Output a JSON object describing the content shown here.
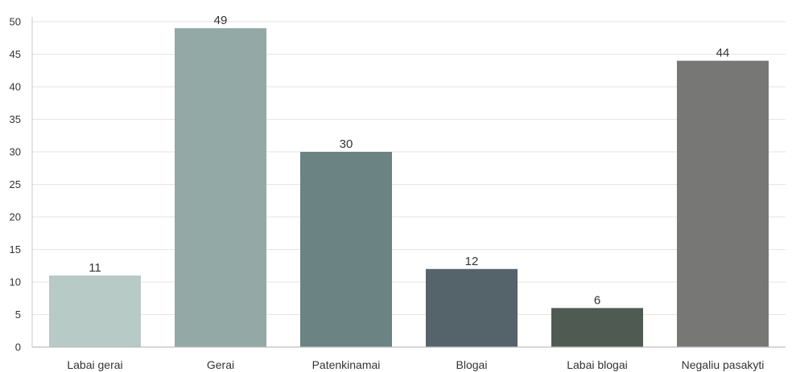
{
  "chart_data": {
    "type": "bar",
    "categories": [
      "Labai gerai",
      "Gerai",
      "Patenkinamai",
      "Blogai",
      "Labai blogai",
      "Negaliu pasakyti"
    ],
    "values": [
      11,
      49,
      30,
      12,
      6,
      44
    ],
    "data_labels": [
      "11",
      "49",
      "30",
      "12",
      "6",
      "44"
    ],
    "colors": [
      "#b7cac6",
      "#93a9a5",
      "#6b8383",
      "#55646a",
      "#4e5a52",
      "#777775"
    ],
    "ylim": [
      0,
      50
    ],
    "yticks": [
      "0",
      "5",
      "10",
      "15",
      "20",
      "25",
      "30",
      "35",
      "40",
      "45",
      "50"
    ],
    "grid": true,
    "legend": "none",
    "title": "",
    "xlabel": "",
    "ylabel": ""
  }
}
